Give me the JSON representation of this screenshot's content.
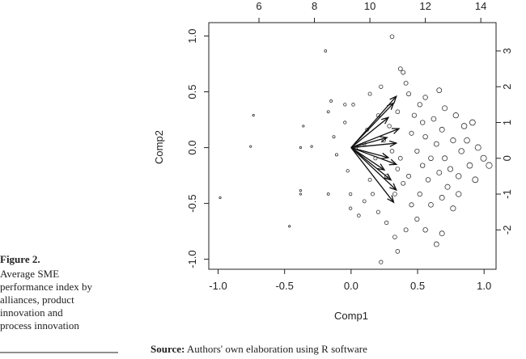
{
  "chart_data": {
    "type": "biplot",
    "xlabel": "Comp1",
    "ylabel": "Comp2",
    "xlim": [
      -1.07,
      1.09
    ],
    "ylim": [
      -1.09,
      1.12
    ],
    "xticks": [
      {
        "value": -1,
        "label": "-1.0"
      },
      -0.5,
      {
        "value": 0,
        "label": "0.0"
      },
      0.5,
      {
        "value": 1,
        "label": "1.0"
      }
    ],
    "yticks": [
      {
        "value": -1,
        "label": "-1.0"
      },
      -0.5,
      {
        "value": 0,
        "label": "0.0"
      },
      0.5,
      {
        "value": 1,
        "label": "1.0"
      }
    ],
    "x2lim": [
      4.19,
      14.55
    ],
    "y2lim": [
      -3.1,
      3.79
    ],
    "x2ticks": [
      6,
      8,
      10,
      12,
      14
    ],
    "y2ticks": [
      -2,
      -1,
      0,
      1,
      2,
      3
    ],
    "points": {
      "x": [
        4.6,
        5.8,
        5.7,
        7.1,
        7.5,
        7.5,
        7.6,
        7.5,
        7.9,
        8.4,
        8.6,
        8.5,
        8.5,
        8.7,
        8.8,
        9.1,
        9.1,
        9.2,
        9.3,
        9.4,
        9.3,
        9.6,
        9.8,
        9.9,
        10.0,
        10.3,
        10.4,
        10.6,
        10.8,
        10.9,
        11.1,
        11.2,
        11.3,
        11.4,
        11.0,
        10.7,
        10.5,
        10.8,
        11.0,
        11.2,
        10.9,
        11.5,
        11.7,
        11.3,
        11.0,
        10.4,
        11.8,
        11.9,
        12.0,
        11.7,
        11.9,
        12.1,
        11.8,
        12.2,
        12.0,
        12.4,
        12.6,
        12.5,
        12.7,
        12.3,
        12.6,
        12.4,
        12.7,
        12.5,
        12.8,
        12.6,
        13.0,
        13.2,
        13.1,
        13.4,
        13.0,
        13.3,
        13.6,
        13.2,
        13.8,
        13.5,
        13.9,
        14.1,
        14.3,
        13.7,
        11.5,
        11.4,
        10.6,
        10.2,
        10.0,
        9.8,
        12.2,
        12.9,
        11.6,
        12.0,
        10.3,
        9.5,
        10.1,
        11.1
      ],
      "y": [
        -1.1,
        1.2,
        0.33,
        -1.9,
        -0.9,
        -1.0,
        0.9,
        0.3,
        0.33,
        3.0,
        1.6,
        1.3,
        -1.0,
        0.6,
        0.1,
        1.5,
        1.0,
        -0.35,
        -1.0,
        1.5,
        -1.4,
        -1.6,
        -1.2,
        0.8,
        1.8,
        -1.5,
        2.0,
        -1.8,
        3.4,
        -2.2,
        2.5,
        2.4,
        2.1,
        1.8,
        1.3,
        0.9,
        0.5,
        0.2,
        -0.3,
        -0.7,
        -1.0,
        -1.3,
        -1.7,
        -2.0,
        -2.6,
        -2.9,
        1.5,
        1.0,
        0.6,
        0.2,
        -0.2,
        -0.6,
        -1.0,
        -1.3,
        -2.0,
        -2.4,
        -2.1,
        1.9,
        1.4,
        1.1,
        0.8,
        0.4,
        0.0,
        -0.4,
        -0.8,
        -1.1,
        -1.4,
        -1.0,
        1.2,
        0.9,
        0.5,
        0.2,
        -0.2,
        -0.5,
        -0.6,
        0.5,
        0.3,
        0.0,
        -0.2,
        1.0,
        0.7,
        -0.5,
        -0.5,
        0.0,
        -0.6,
        0.4,
        0.0,
        -0.3,
        1.2,
        1.7,
        1.2,
        0.3,
        -1.0,
        0.0
      ]
    },
    "arrows": {
      "x": [
        0.34,
        0.32,
        0.28,
        0.36,
        0.27,
        0.34,
        0.28,
        0.34,
        0.25,
        0.3,
        0.34,
        0.32
      ],
      "y": [
        0.46,
        0.4,
        0.27,
        0.17,
        0.09,
        0.04,
        -0.09,
        -0.15,
        -0.2,
        -0.29,
        -0.38,
        -0.49
      ]
    }
  },
  "figure": {
    "label": "Figure 2.",
    "caption": [
      "Average SME",
      "performance index by",
      "alliances, product",
      "innovation and",
      "process innovation"
    ]
  },
  "source": {
    "label": "Source:",
    "text": "Authors' own elaboration using R software"
  }
}
